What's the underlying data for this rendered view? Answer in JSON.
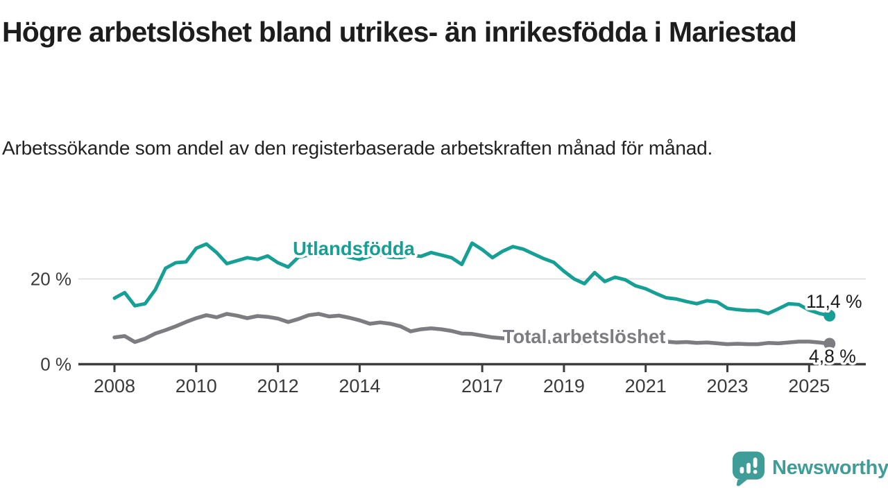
{
  "header": {
    "title": "Högre arbetslöshet bland utrikes- än inrikesfödda i Mariestad",
    "subtitle": "Arbetssökande som andel av den registerbaserade arbetskraften månad för månad."
  },
  "colors": {
    "foreign_born_line": "#16a095",
    "total_line": "#7d7d81",
    "axis": "#3d3d3d",
    "axis_text": "#3a3a3a",
    "gridline": "#dadada",
    "value_label_text": "#1c1c1c",
    "brand_teal": "#3f9d98"
  },
  "chart_data": {
    "type": "line",
    "title": "Högre arbetslöshet bland utrikes- än inrikesfödda i Mariestad",
    "subtitle": "Arbetssökande som andel av den registerbaserade arbetskraften månad för månad.",
    "x_unit": "year (monthly data)",
    "y_unit": "percent",
    "x_range": [
      2008,
      2025.6
    ],
    "y_range": [
      0,
      32
    ],
    "grid": "single horizontal gridline at y=20",
    "legend_position": "labels drawn on chart next to lines",
    "x_ticks": [
      "2008",
      "2010",
      "2012",
      "2014",
      "2017",
      "2019",
      "2021",
      "2023",
      "2025"
    ],
    "x_tick_years": [
      2008,
      2010,
      2012,
      2014,
      2017,
      2019,
      2021,
      2023,
      2025
    ],
    "y_ticks": [
      {
        "value": 0,
        "label": "0 %"
      },
      {
        "value": 20,
        "label": "20 %"
      }
    ],
    "series": [
      {
        "name": "Utlandsfödda",
        "color": "#16a095",
        "start_year": 2008.0,
        "step_years": 0.25,
        "end_label": "11,4 %",
        "end_value": 11.4,
        "values": [
          15.5,
          16.8,
          13.7,
          14.2,
          17.5,
          22.5,
          23.8,
          24.0,
          27.2,
          28.2,
          26.2,
          23.6,
          24.3,
          25.0,
          24.6,
          25.4,
          23.8,
          22.8,
          25.1,
          25.6,
          25.4,
          26.2,
          25.9,
          25.1,
          24.6,
          25.3,
          25.7,
          25.1,
          25.0,
          25.6,
          25.3,
          26.2,
          25.6,
          25.0,
          23.4,
          28.4,
          26.9,
          25.0,
          26.5,
          27.6,
          27.0,
          25.9,
          24.8,
          23.9,
          21.8,
          20.0,
          18.9,
          21.5,
          19.4,
          20.4,
          19.8,
          18.4,
          17.7,
          16.6,
          15.6,
          15.3,
          14.7,
          14.2,
          14.9,
          14.6,
          13.1,
          12.8,
          12.6,
          12.6,
          11.9,
          13.0,
          14.2,
          14.0,
          12.7,
          11.9,
          11.4
        ]
      },
      {
        "name": "Total arbetslöshet",
        "color": "#7d7d81",
        "start_year": 2008.0,
        "step_years": 0.25,
        "end_label": "4,8 %",
        "end_value": 4.8,
        "values": [
          6.3,
          6.6,
          5.2,
          6.0,
          7.2,
          8.0,
          8.9,
          9.9,
          10.8,
          11.5,
          11.0,
          11.8,
          11.4,
          10.8,
          11.3,
          11.1,
          10.7,
          9.9,
          10.6,
          11.5,
          11.8,
          11.2,
          11.4,
          10.9,
          10.3,
          9.5,
          9.8,
          9.5,
          8.9,
          7.7,
          8.2,
          8.4,
          8.2,
          7.8,
          7.2,
          7.1,
          6.7,
          6.3,
          6.1,
          5.9,
          5.6,
          5.4,
          5.3,
          5.2,
          5.1,
          5.0,
          5.1,
          5.2,
          5.5,
          6.2,
          6.3,
          6.0,
          5.8,
          5.5,
          5.3,
          5.1,
          5.2,
          5.0,
          5.1,
          4.9,
          4.7,
          4.8,
          4.7,
          4.7,
          5.0,
          4.9,
          5.1,
          5.3,
          5.3,
          5.1,
          4.8
        ]
      }
    ]
  },
  "footer": {
    "brand": "Newsworthy"
  }
}
